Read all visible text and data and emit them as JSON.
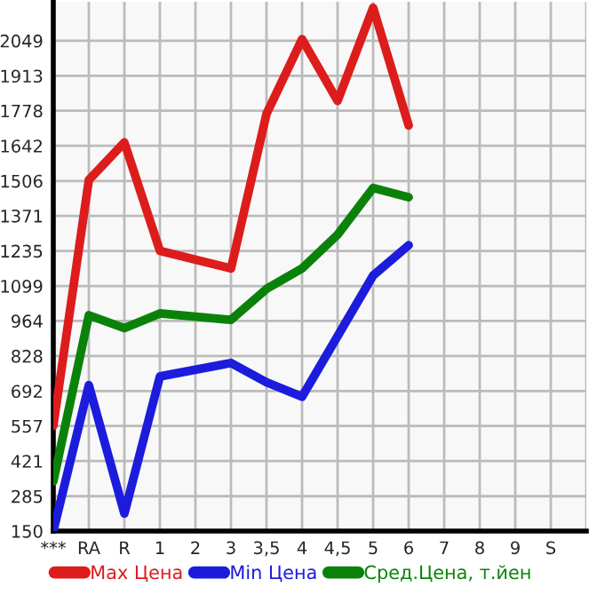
{
  "chart_data": {
    "type": "line",
    "categories": [
      "***",
      "RA",
      "R",
      "1",
      "2",
      "3",
      "3,5",
      "4",
      "4,5",
      "5",
      "6",
      "7",
      "8",
      "9",
      "S"
    ],
    "ylim": [
      150,
      2200
    ],
    "yticks": [
      150,
      285,
      421,
      557,
      692,
      828,
      964,
      1099,
      1235,
      1371,
      1506,
      1642,
      1778,
      1913,
      2049
    ],
    "grid": true,
    "legend": "bottom",
    "marker": "none",
    "line_style": "solid",
    "series": [
      {
        "name": "Max Цена",
        "color": "#dd1c1c",
        "values": [
          557,
          1510,
          1655,
          1235,
          null,
          1167,
          1766,
          2055,
          1816,
          2177,
          1721,
          null,
          null,
          null,
          null
        ]
      },
      {
        "name": "Min Цена",
        "color": "#1c1cdd",
        "values": [
          150,
          715,
          218,
          749,
          null,
          801,
          726,
          670,
          905,
          1140,
          1257,
          null,
          null,
          null,
          null
        ]
      },
      {
        "name": "Сред.Цена, т.йен",
        "color": "#0a820a",
        "values": [
          342,
          986,
          936,
          993,
          null,
          968,
          1088,
          1167,
          1298,
          1479,
          1443,
          null,
          null,
          null,
          null
        ]
      }
    ]
  }
}
